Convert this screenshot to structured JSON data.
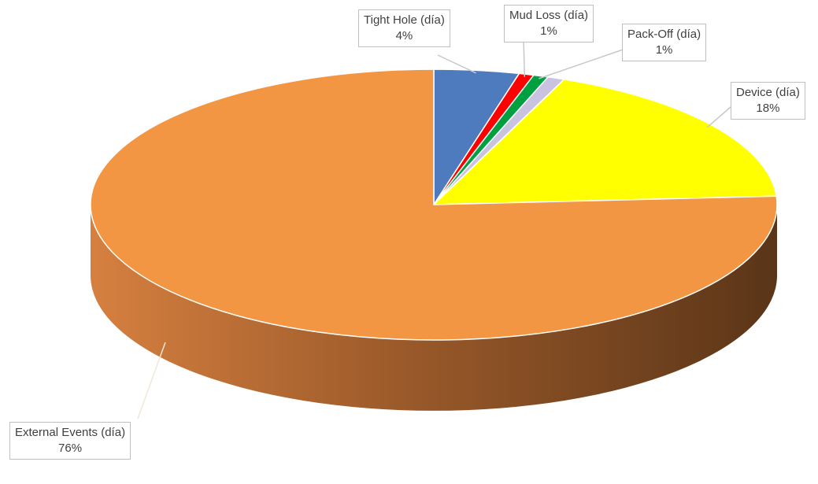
{
  "chart_data": {
    "type": "pie",
    "title": "",
    "series": [
      {
        "label": "Tight Hole (día)",
        "percent_label": "4%",
        "value": 4,
        "color": "#4e7bbd"
      },
      {
        "label": "Mud Loss (día)",
        "percent_label": "1%",
        "value": 0.7,
        "color": "#ff0000"
      },
      {
        "label": "Pack-Off (día)",
        "percent_label": "1%",
        "value": 0.7,
        "color": "#00a040"
      },
      {
        "label": "",
        "percent_label": "",
        "value": 0.8,
        "color": "#c9c3e0"
      },
      {
        "label": "Device (día)",
        "percent_label": "18%",
        "value": 17.8,
        "color": "#ffff00"
      },
      {
        "label": "External Events (día)",
        "percent_label": "76%",
        "value": 76,
        "color": "#f29644"
      }
    ],
    "style": "3d-pie",
    "legend": "none",
    "data_labels": "callouts-with-leader-lines"
  }
}
